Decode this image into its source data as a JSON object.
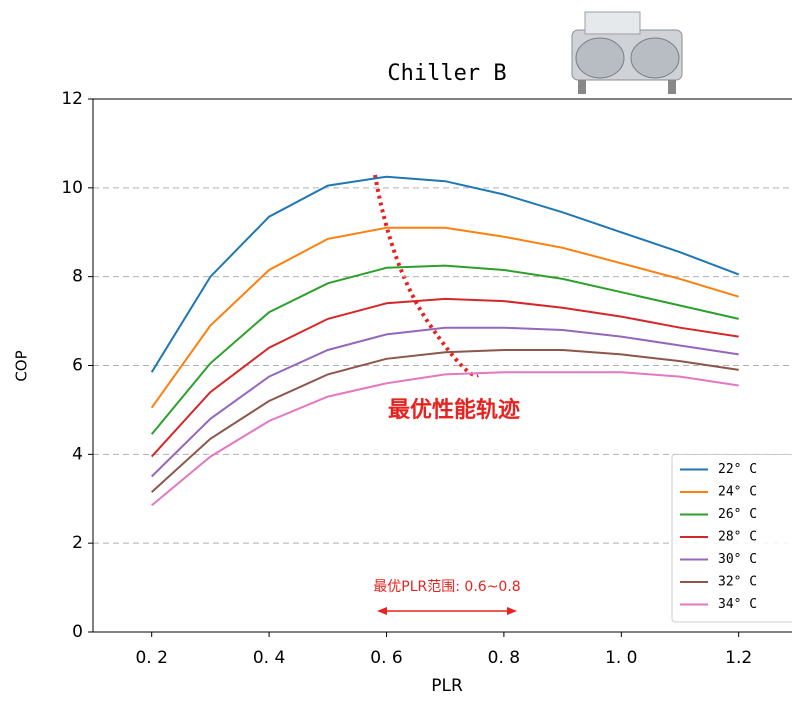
{
  "chart_data": {
    "type": "line",
    "title": "Chiller B",
    "x_label": "PLR",
    "y_label": "COP",
    "x": [
      0.2,
      0.3,
      0.4,
      0.5,
      0.6,
      0.7,
      0.8,
      0.9,
      1.0,
      1.1,
      1.2
    ],
    "series": [
      {
        "name": "22° C",
        "color": "#1f77b4",
        "values": [
          5.85,
          8.0,
          9.35,
          10.05,
          10.25,
          10.15,
          9.85,
          9.45,
          9.0,
          8.55,
          8.05
        ]
      },
      {
        "name": "24° C",
        "color": "#ff7f0e",
        "values": [
          5.05,
          6.9,
          8.15,
          8.85,
          9.1,
          9.1,
          8.9,
          8.65,
          8.3,
          7.95,
          7.55
        ]
      },
      {
        "name": "26° C",
        "color": "#2ca02c",
        "values": [
          4.45,
          6.05,
          7.2,
          7.85,
          8.2,
          8.25,
          8.15,
          7.95,
          7.65,
          7.35,
          7.05
        ]
      },
      {
        "name": "28° C",
        "color": "#d62728",
        "values": [
          3.95,
          5.4,
          6.4,
          7.05,
          7.4,
          7.5,
          7.45,
          7.3,
          7.1,
          6.85,
          6.65
        ]
      },
      {
        "name": "30° C",
        "color": "#9467bd",
        "values": [
          3.5,
          4.8,
          5.75,
          6.35,
          6.7,
          6.85,
          6.85,
          6.8,
          6.65,
          6.45,
          6.25
        ]
      },
      {
        "name": "32° C",
        "color": "#8c564b",
        "values": [
          3.15,
          4.35,
          5.2,
          5.8,
          6.15,
          6.3,
          6.35,
          6.35,
          6.25,
          6.1,
          5.9
        ]
      },
      {
        "name": "34° C",
        "color": "#e377c2",
        "values": [
          2.85,
          3.95,
          4.75,
          5.3,
          5.6,
          5.8,
          5.85,
          5.85,
          5.85,
          5.75,
          5.55
        ]
      }
    ],
    "xlim": [
      0.1,
      1.3
    ],
    "xticks": [
      {
        "value": 0.2,
        "label": "0. 2"
      },
      {
        "value": 0.4,
        "label": "0. 4"
      },
      {
        "value": 0.6,
        "label": "0. 6"
      },
      {
        "value": 0.8,
        "label": "0. 8"
      },
      {
        "value": 1.0,
        "label": "1. 0"
      },
      1.2
    ],
    "ylim": [
      0,
      12
    ],
    "yticks": [
      0,
      2,
      4,
      6,
      8,
      10,
      12
    ],
    "grid": true,
    "legend": "lower right",
    "annotations": [
      "最优性能轨迹",
      "最优PLR范围: 0.6~0.8"
    ]
  }
}
